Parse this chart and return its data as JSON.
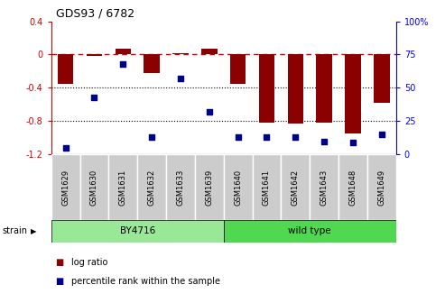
{
  "title": "GDS93 / 6782",
  "samples": [
    "GSM1629",
    "GSM1630",
    "GSM1631",
    "GSM1632",
    "GSM1633",
    "GSM1639",
    "GSM1640",
    "GSM1641",
    "GSM1642",
    "GSM1643",
    "GSM1648",
    "GSM1649"
  ],
  "log_ratio": [
    -0.35,
    -0.02,
    0.07,
    -0.22,
    0.02,
    0.07,
    -0.35,
    -0.82,
    -0.83,
    -0.82,
    -0.95,
    -0.58
  ],
  "percentile_rank": [
    5,
    43,
    68,
    13,
    57,
    32,
    13,
    13,
    13,
    10,
    9,
    15
  ],
  "bar_color": "#8B0000",
  "dot_color": "#00008B",
  "dash_color": "#CC0000",
  "ylim_left": [
    -1.2,
    0.4
  ],
  "ylim_right": [
    0,
    100
  ],
  "yticks_left": [
    -1.2,
    -0.8,
    -0.4,
    0.0,
    0.4
  ],
  "yticks_right": [
    0,
    25,
    50,
    75,
    100
  ],
  "yticklabels_right": [
    "0",
    "25",
    "50",
    "75",
    "100%"
  ],
  "strain_boundary": 6,
  "strain_colors": {
    "BY4716": "#98E898",
    "wild type": "#50D850"
  },
  "legend_log_ratio_label": "log ratio",
  "legend_pct_label": "percentile rank within the sample",
  "strain_label": "strain"
}
